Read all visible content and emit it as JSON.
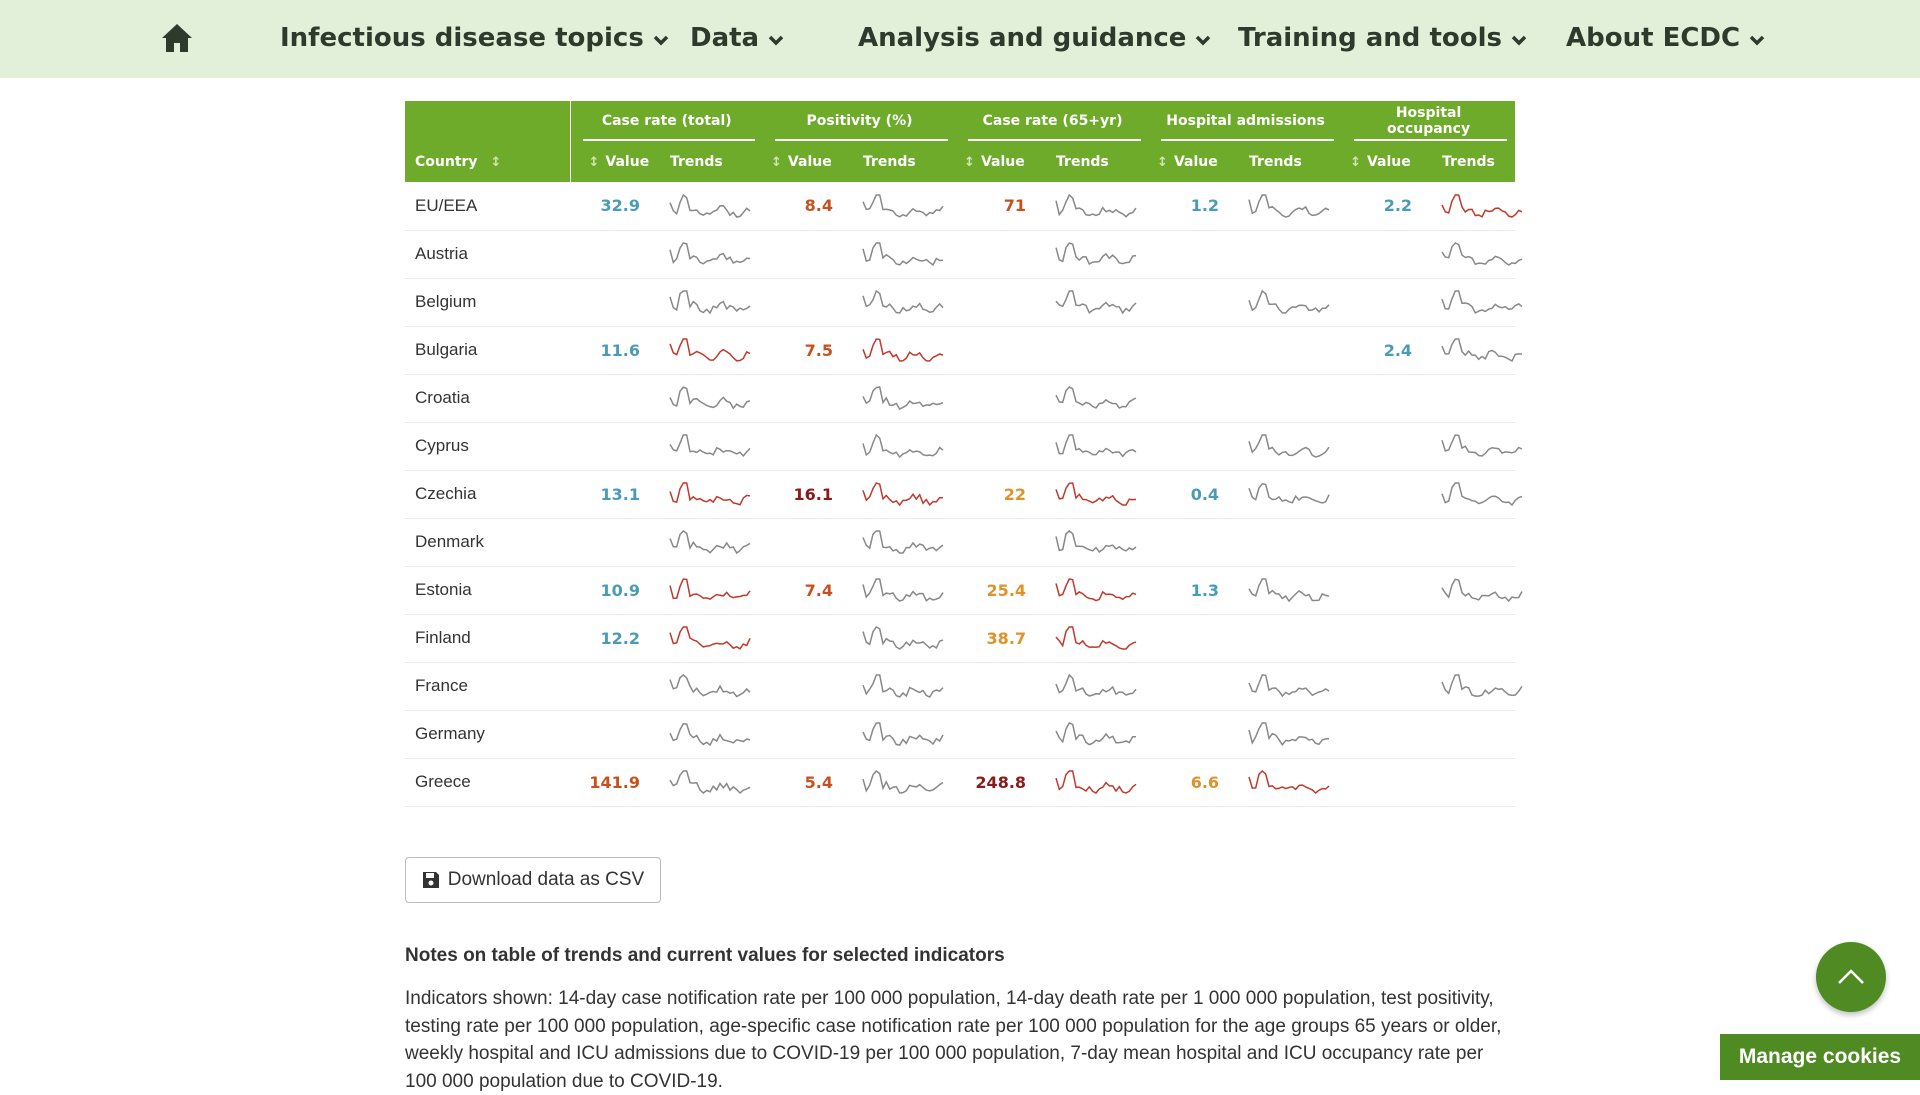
{
  "nav": {
    "home_icon": "home-icon",
    "items": [
      {
        "label": "Infectious disease topics"
      },
      {
        "label": "Data"
      },
      {
        "label": "Analysis and guidance"
      },
      {
        "label": "Training and tools"
      },
      {
        "label": "About ECDC"
      }
    ]
  },
  "table": {
    "group_headers": [
      "Case rate (total)",
      "Positivity (%)",
      "Case rate (65+yr)",
      "Hospital admissions",
      "Hospital occupancy"
    ],
    "col_country": "Country",
    "col_value": "Value",
    "col_trends": "Trends",
    "rows": [
      {
        "country": "EU/EEA",
        "values": [
          "32.9",
          "8.4",
          "71",
          "1.2",
          "2.2"
        ]
      },
      {
        "country": "Austria",
        "values": [
          "",
          "",
          "",
          "",
          ""
        ]
      },
      {
        "country": "Belgium",
        "values": [
          "",
          "",
          "",
          "",
          ""
        ]
      },
      {
        "country": "Bulgaria",
        "values": [
          "11.6",
          "7.5",
          "",
          "",
          "2.4"
        ]
      },
      {
        "country": "Croatia",
        "values": [
          "",
          "",
          "",
          "",
          ""
        ]
      },
      {
        "country": "Cyprus",
        "values": [
          "",
          "",
          "",
          "",
          ""
        ]
      },
      {
        "country": "Czechia",
        "values": [
          "13.1",
          "16.1",
          "22",
          "0.4",
          ""
        ]
      },
      {
        "country": "Denmark",
        "values": [
          "",
          "",
          "",
          "",
          ""
        ]
      },
      {
        "country": "Estonia",
        "values": [
          "10.9",
          "7.4",
          "25.4",
          "1.3",
          ""
        ]
      },
      {
        "country": "Finland",
        "values": [
          "12.2",
          "",
          "38.7",
          "",
          ""
        ]
      },
      {
        "country": "France",
        "values": [
          "",
          "",
          "",
          "",
          ""
        ]
      },
      {
        "country": "Germany",
        "values": [
          "",
          "",
          "",
          "",
          ""
        ]
      },
      {
        "country": "Greece",
        "values": [
          "141.9",
          "5.4",
          "248.8",
          "6.6",
          ""
        ]
      }
    ]
  },
  "colors": {
    "accent_green": "#6fab2a",
    "nav_bg": "#e2efd9",
    "button_green": "#4f8a23",
    "value_blue": "#4a9bb8",
    "value_orange": "#e0922a",
    "value_red": "#c8501e",
    "value_darkred": "#8b1a1a",
    "trend_grey": "#888888",
    "trend_red": "#c0392b"
  },
  "download": {
    "label": "Download data as CSV",
    "icon": "floppy-disk-icon"
  },
  "notes": {
    "title": "Notes on table of trends and current values for selected indicators",
    "body": "Indicators shown: 14-day case notification rate per 100 000 population, 14-day death rate per 1 000 000 population, test positivity, testing rate per 100 000 population, age-specific case notification rate per 100 000 population for the age groups 65 years or older, weekly hospital and ICU admissions due to COVID-19 per 100 000 population, 7-day mean hospital and ICU occupancy rate per 100 000 population due to COVID-19."
  },
  "scroll_top_icon": "chevron-up-icon",
  "cookies": {
    "label": "Manage cookies"
  }
}
